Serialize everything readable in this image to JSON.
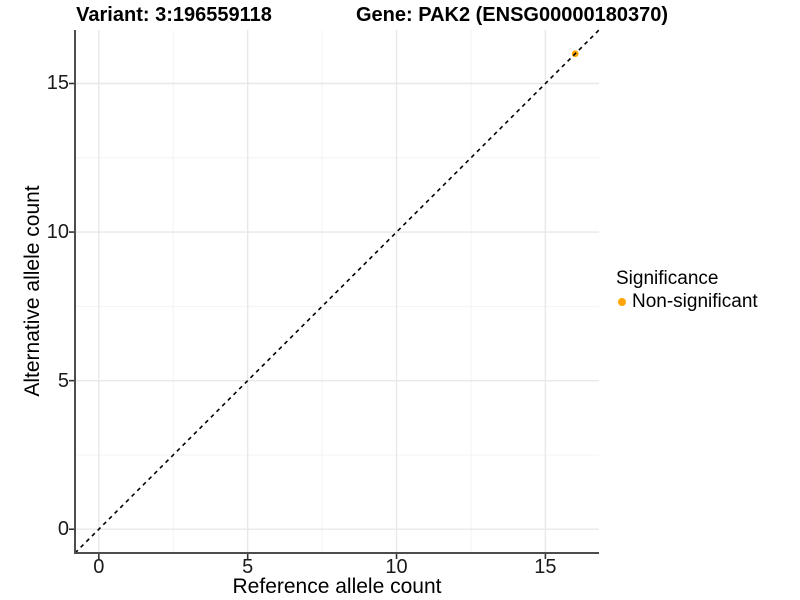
{
  "header": {
    "title_left": "Variant: 3:196559118",
    "title_right": "Gene: PAK2 (ENSG00000180370)"
  },
  "chart_data": {
    "type": "scatter",
    "title": "Variant: 3:196559118  |  Gene: PAK2 (ENSG00000180370)",
    "xlabel": "Reference allele count",
    "ylabel": "Alternative allele count",
    "xlim": [
      -0.8,
      16.8
    ],
    "ylim": [
      -0.8,
      16.8
    ],
    "x_ticks": [
      0,
      5,
      10,
      15
    ],
    "y_ticks": [
      0,
      5,
      10,
      15
    ],
    "x_minor_ticks": [
      2.5,
      7.5,
      12.5
    ],
    "y_minor_ticks": [
      2.5,
      7.5,
      12.5
    ],
    "grid": true,
    "identity_line": {
      "style": "dashed",
      "color": "#000000",
      "from": [
        -0.8,
        -0.8
      ],
      "to": [
        16.8,
        16.8
      ]
    },
    "series": [
      {
        "name": "Non-significant",
        "color": "#FFA500",
        "points": [
          [
            16,
            16
          ]
        ]
      }
    ],
    "legend": {
      "position": "right",
      "title": "Significance",
      "entries": [
        {
          "label": "Non-significant",
          "color": "#FFA500"
        }
      ]
    },
    "colors": {
      "point": "#FFA500",
      "major_grid": "#E8E8E8",
      "minor_grid": "#F3F3F3",
      "axis_line": "#4D4D4D",
      "tick_mark": "#333333",
      "text": "#000000",
      "background": "#FFFFFF"
    }
  }
}
